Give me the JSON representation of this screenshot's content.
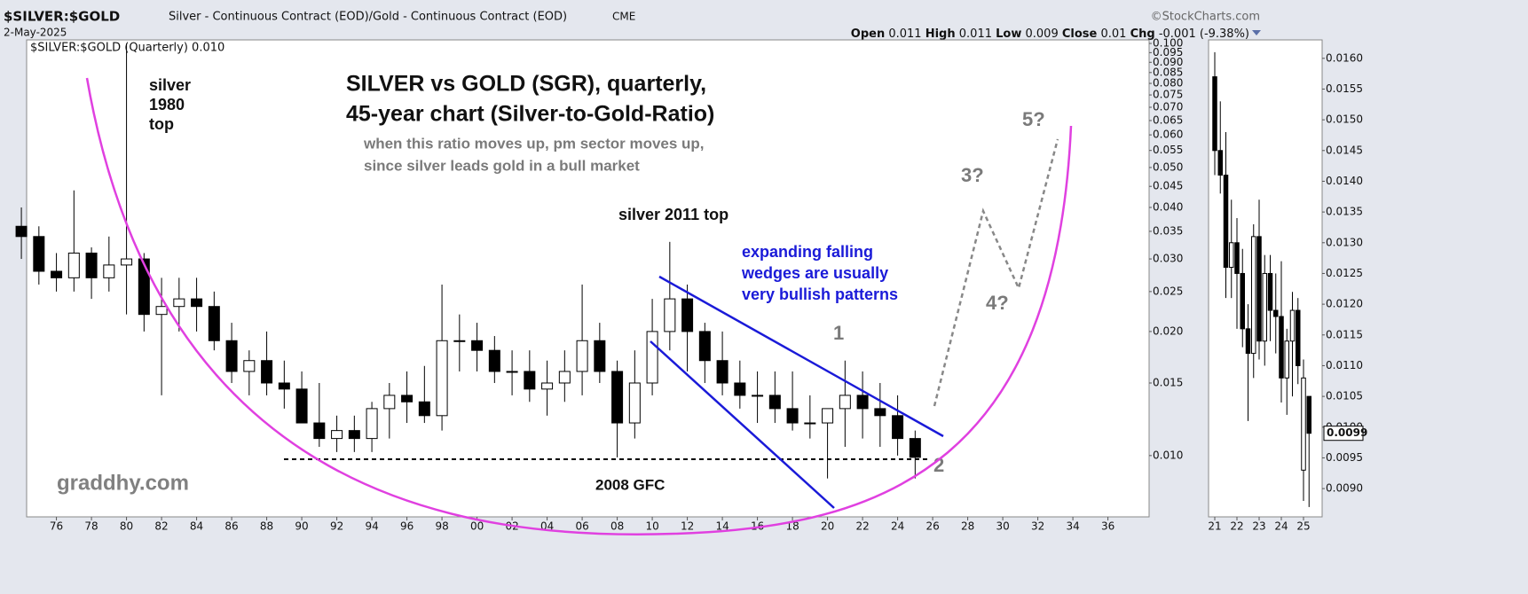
{
  "header": {
    "symbol": "$SILVER:$GOLD",
    "description": "Silver - Continuous Contract (EOD)/Gold - Continuous Contract (EOD)",
    "exchange": "CME",
    "date": "2-May-2025",
    "source": "©StockCharts.com",
    "quote": [
      {
        "label": "Open",
        "value": 0.011
      },
      {
        "label": "High",
        "value": 0.011
      },
      {
        "label": "Low",
        "value": 0.009
      },
      {
        "label": "Close",
        "value": 0.01
      },
      {
        "label": "Chg",
        "value": "-0.001 (-9.38%)"
      }
    ]
  },
  "chart_data": [
    {
      "type": "candlestick",
      "legend": "$SILVER:$GOLD (Quarterly) 0.010",
      "log_scale": true,
      "title": [
        "SILVER vs GOLD (SGR), quarterly,",
        "45-year chart (Silver-to-Gold-Ratio)"
      ],
      "subtitle": [
        "when this ratio moves up, pm sector moves up,",
        "since silver leads gold in a bull market"
      ],
      "watermark": "graddhy.com",
      "annotations": [
        {
          "lines": [
            "silver",
            "1980",
            "top"
          ],
          "color": "#111111"
        },
        {
          "lines": [
            "silver 2011 top"
          ],
          "color": "#111111"
        },
        {
          "lines": [
            "expanding falling",
            "wedges are usually",
            "very bullish patterns"
          ],
          "color": "#1a1ad8"
        },
        {
          "lines": [
            "1"
          ],
          "color": "#7a7a7a"
        },
        {
          "lines": [
            "2"
          ],
          "color": "#7a7a7a"
        },
        {
          "lines": [
            "3?"
          ],
          "color": "#7a7a7a"
        },
        {
          "lines": [
            "4?"
          ],
          "color": "#7a7a7a"
        },
        {
          "lines": [
            "5?"
          ],
          "color": "#7a7a7a"
        },
        {
          "lines": [
            "2008 GFC"
          ],
          "color": "#111111"
        }
      ],
      "xlim": [
        1974.3,
        2038.35
      ],
      "ylim": [
        0.0071,
        0.102
      ],
      "xticks": [
        {
          "value": 1976,
          "label": "76"
        },
        {
          "value": 1978,
          "label": "78"
        },
        {
          "value": 1980,
          "label": "80"
        },
        {
          "value": 1982,
          "label": "82"
        },
        {
          "value": 1984,
          "label": "84"
        },
        {
          "value": 1986,
          "label": "86"
        },
        {
          "value": 1988,
          "label": "88"
        },
        {
          "value": 1990,
          "label": "90"
        },
        {
          "value": 1992,
          "label": "92"
        },
        {
          "value": 1994,
          "label": "94"
        },
        {
          "value": 1996,
          "label": "96"
        },
        {
          "value": 1998,
          "label": "98"
        },
        {
          "value": 2000,
          "label": "00"
        },
        {
          "value": 2002,
          "label": "02"
        },
        {
          "value": 2004,
          "label": "04"
        },
        {
          "value": 2006,
          "label": "06"
        },
        {
          "value": 2008,
          "label": "08"
        },
        {
          "value": 2010,
          "label": "10"
        },
        {
          "value": 2012,
          "label": "12"
        },
        {
          "value": 2014,
          "label": "14"
        },
        {
          "value": 2016,
          "label": "16"
        },
        {
          "value": 2018,
          "label": "18"
        },
        {
          "value": 2020,
          "label": "20"
        },
        {
          "value": 2022,
          "label": "22"
        },
        {
          "value": 2024,
          "label": "24"
        },
        {
          "value": 2026,
          "label": "26"
        },
        {
          "value": 2028,
          "label": "28"
        },
        {
          "value": 2030,
          "label": "30"
        },
        {
          "value": 2032,
          "label": "32"
        },
        {
          "value": 2034,
          "label": "34"
        },
        {
          "value": 2036,
          "label": "36"
        }
      ],
      "yticks": [
        {
          "value": 0.1,
          "label": "0.100"
        },
        0.095,
        {
          "value": 0.09,
          "label": "0.090"
        },
        0.085,
        {
          "value": 0.08,
          "label": "0.080"
        },
        0.075,
        {
          "value": 0.07,
          "label": "0.070"
        },
        0.065,
        {
          "value": 0.06,
          "label": "0.060"
        },
        0.055,
        {
          "value": 0.05,
          "label": "0.050"
        },
        0.045,
        {
          "value": 0.04,
          "label": "0.040"
        },
        0.035,
        {
          "value": 0.03,
          "label": "0.030"
        },
        0.025,
        {
          "value": 0.02,
          "label": "0.020"
        },
        0.015,
        {
          "value": 0.01,
          "label": "0.010"
        }
      ],
      "x": [
        1974,
        1975,
        1976,
        1977,
        1978,
        1979,
        1980,
        1981,
        1982,
        1983,
        1984,
        1985,
        1986,
        1987,
        1988,
        1989,
        1990,
        1991,
        1992,
        1993,
        1994,
        1995,
        1996,
        1997,
        1998,
        1999,
        2000,
        2001,
        2002,
        2003,
        2004,
        2005,
        2006,
        2007,
        2008,
        2009,
        2010,
        2011,
        2012,
        2013,
        2014,
        2015,
        2016,
        2017,
        2018,
        2019,
        2020,
        2021,
        2022,
        2023,
        2024,
        2025
      ],
      "open": [
        0.036,
        0.034,
        0.028,
        0.027,
        0.031,
        0.027,
        0.029,
        0.03,
        0.022,
        0.023,
        0.024,
        0.023,
        0.019,
        0.016,
        0.017,
        0.015,
        0.0145,
        0.012,
        0.011,
        0.0115,
        0.011,
        0.013,
        0.014,
        0.0135,
        0.0125,
        0.019,
        0.019,
        0.018,
        0.016,
        0.016,
        0.0145,
        0.015,
        0.016,
        0.019,
        0.016,
        0.012,
        0.015,
        0.02,
        0.024,
        0.02,
        0.017,
        0.015,
        0.014,
        0.014,
        0.013,
        0.012,
        0.012,
        0.013,
        0.014,
        0.013,
        0.0125,
        0.011
      ],
      "high": [
        0.04,
        0.036,
        0.031,
        0.044,
        0.032,
        0.034,
        0.1,
        0.031,
        0.027,
        0.027,
        0.027,
        0.025,
        0.021,
        0.018,
        0.02,
        0.017,
        0.016,
        0.015,
        0.0125,
        0.0125,
        0.0135,
        0.015,
        0.016,
        0.0165,
        0.026,
        0.022,
        0.021,
        0.0195,
        0.018,
        0.018,
        0.017,
        0.018,
        0.026,
        0.021,
        0.017,
        0.018,
        0.024,
        0.033,
        0.026,
        0.021,
        0.02,
        0.017,
        0.016,
        0.016,
        0.016,
        0.014,
        0.013,
        0.017,
        0.016,
        0.015,
        0.014,
        0.0115
      ],
      "low": [
        0.03,
        0.026,
        0.025,
        0.025,
        0.024,
        0.025,
        0.022,
        0.02,
        0.014,
        0.02,
        0.02,
        0.018,
        0.015,
        0.014,
        0.014,
        0.013,
        0.012,
        0.0105,
        0.0102,
        0.0102,
        0.0102,
        0.011,
        0.012,
        0.012,
        0.0115,
        0.016,
        0.016,
        0.015,
        0.014,
        0.0135,
        0.0125,
        0.0135,
        0.014,
        0.015,
        0.0099,
        0.011,
        0.014,
        0.018,
        0.016,
        0.015,
        0.014,
        0.013,
        0.012,
        0.012,
        0.0115,
        0.011,
        0.0088,
        0.0105,
        0.011,
        0.0105,
        0.01,
        0.0088
      ],
      "close": [
        0.034,
        0.028,
        0.027,
        0.031,
        0.027,
        0.029,
        0.03,
        0.022,
        0.023,
        0.024,
        0.023,
        0.019,
        0.016,
        0.017,
        0.015,
        0.0145,
        0.012,
        0.011,
        0.0115,
        0.011,
        0.013,
        0.014,
        0.0135,
        0.0125,
        0.019,
        0.019,
        0.018,
        0.016,
        0.016,
        0.0145,
        0.015,
        0.016,
        0.019,
        0.016,
        0.012,
        0.015,
        0.02,
        0.024,
        0.02,
        0.017,
        0.015,
        0.014,
        0.014,
        0.013,
        0.012,
        0.012,
        0.013,
        0.014,
        0.013,
        0.0125,
        0.011,
        0.0099
      ]
    },
    {
      "type": "candlestick",
      "log_scale": false,
      "xlim": [
        2020.72,
        2025.84
      ],
      "ylim": [
        0.00854,
        0.0163
      ],
      "xticks": [
        {
          "value": 2021,
          "label": "21"
        },
        {
          "value": 2022,
          "label": "22"
        },
        {
          "value": 2023,
          "label": "23"
        },
        {
          "value": 2024,
          "label": "24"
        },
        {
          "value": 2025,
          "label": "25"
        }
      ],
      "yticks": [
        {
          "value": 0.016,
          "label": "0.0160"
        },
        0.0155,
        {
          "value": 0.015,
          "label": "0.0150"
        },
        0.0145,
        {
          "value": 0.014,
          "label": "0.0140"
        },
        0.0135,
        {
          "value": 0.013,
          "label": "0.0130"
        },
        0.0125,
        {
          "value": 0.012,
          "label": "0.0120"
        },
        0.0115,
        {
          "value": 0.011,
          "label": "0.0110"
        },
        0.0105,
        {
          "value": 0.01,
          "label": "0.0100"
        },
        0.0095,
        {
          "value": 0.009,
          "label": "0.0090"
        }
      ],
      "last": 0.0099,
      "x": [
        2021,
        2021.25,
        2021.5,
        2021.75,
        2022,
        2022.25,
        2022.5,
        2022.75,
        2023,
        2023.25,
        2023.5,
        2023.75,
        2024,
        2024.25,
        2024.5,
        2024.75,
        2025,
        2025.25
      ],
      "open": [
        0.0157,
        0.0145,
        0.0141,
        0.0126,
        0.013,
        0.0125,
        0.0116,
        0.0112,
        0.0131,
        0.0114,
        0.0125,
        0.0119,
        0.0118,
        0.0108,
        0.0114,
        0.0119,
        0.0093,
        0.0105
      ],
      "high": [
        0.0161,
        0.0153,
        0.0148,
        0.0137,
        0.0134,
        0.0129,
        0.012,
        0.0133,
        0.0137,
        0.0128,
        0.0128,
        0.0125,
        0.0127,
        0.0116,
        0.0122,
        0.0121,
        0.0111,
        0.0105
      ],
      "low": [
        0.0141,
        0.0138,
        0.0121,
        0.0121,
        0.0116,
        0.0113,
        0.0101,
        0.0108,
        0.0111,
        0.011,
        0.0114,
        0.0112,
        0.0104,
        0.0102,
        0.0105,
        0.0107,
        0.0088,
        0.0087
      ],
      "close": [
        0.0145,
        0.0141,
        0.0126,
        0.013,
        0.0125,
        0.0116,
        0.0112,
        0.0131,
        0.0114,
        0.0125,
        0.0119,
        0.0118,
        0.0108,
        0.0114,
        0.0119,
        0.011,
        0.0108,
        0.0099
      ]
    }
  ]
}
